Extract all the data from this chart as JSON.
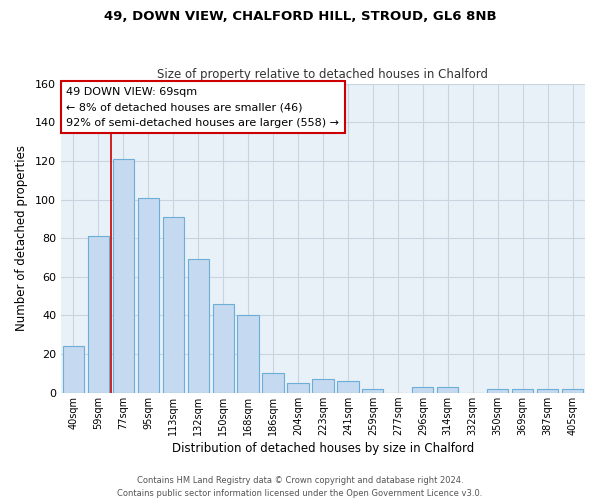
{
  "title": "49, DOWN VIEW, CHALFORD HILL, STROUD, GL6 8NB",
  "subtitle": "Size of property relative to detached houses in Chalford",
  "xlabel": "Distribution of detached houses by size in Chalford",
  "ylabel": "Number of detached properties",
  "bar_labels": [
    "40sqm",
    "59sqm",
    "77sqm",
    "95sqm",
    "113sqm",
    "132sqm",
    "150sqm",
    "168sqm",
    "186sqm",
    "204sqm",
    "223sqm",
    "241sqm",
    "259sqm",
    "277sqm",
    "296sqm",
    "314sqm",
    "332sqm",
    "350sqm",
    "369sqm",
    "387sqm",
    "405sqm"
  ],
  "bar_values": [
    24,
    81,
    121,
    101,
    91,
    69,
    46,
    40,
    10,
    5,
    7,
    6,
    2,
    0,
    3,
    3,
    0,
    2,
    2,
    2,
    2
  ],
  "bar_color": "#c5d9f0",
  "bar_edge_color": "#6baed6",
  "ylim": [
    0,
    160
  ],
  "yticks": [
    0,
    20,
    40,
    60,
    80,
    100,
    120,
    140,
    160
  ],
  "property_line_color": "#cc0000",
  "annotation_title": "49 DOWN VIEW: 69sqm",
  "annotation_line1": "← 8% of detached houses are smaller (46)",
  "annotation_line2": "92% of semi-detached houses are larger (558) →",
  "annotation_box_color": "#ffffff",
  "annotation_box_edge": "#cc0000",
  "footer_line1": "Contains HM Land Registry data © Crown copyright and database right 2024.",
  "footer_line2": "Contains public sector information licensed under the Open Government Licence v3.0.",
  "bg_color": "#ffffff",
  "grid_color": "#c8d4e0"
}
